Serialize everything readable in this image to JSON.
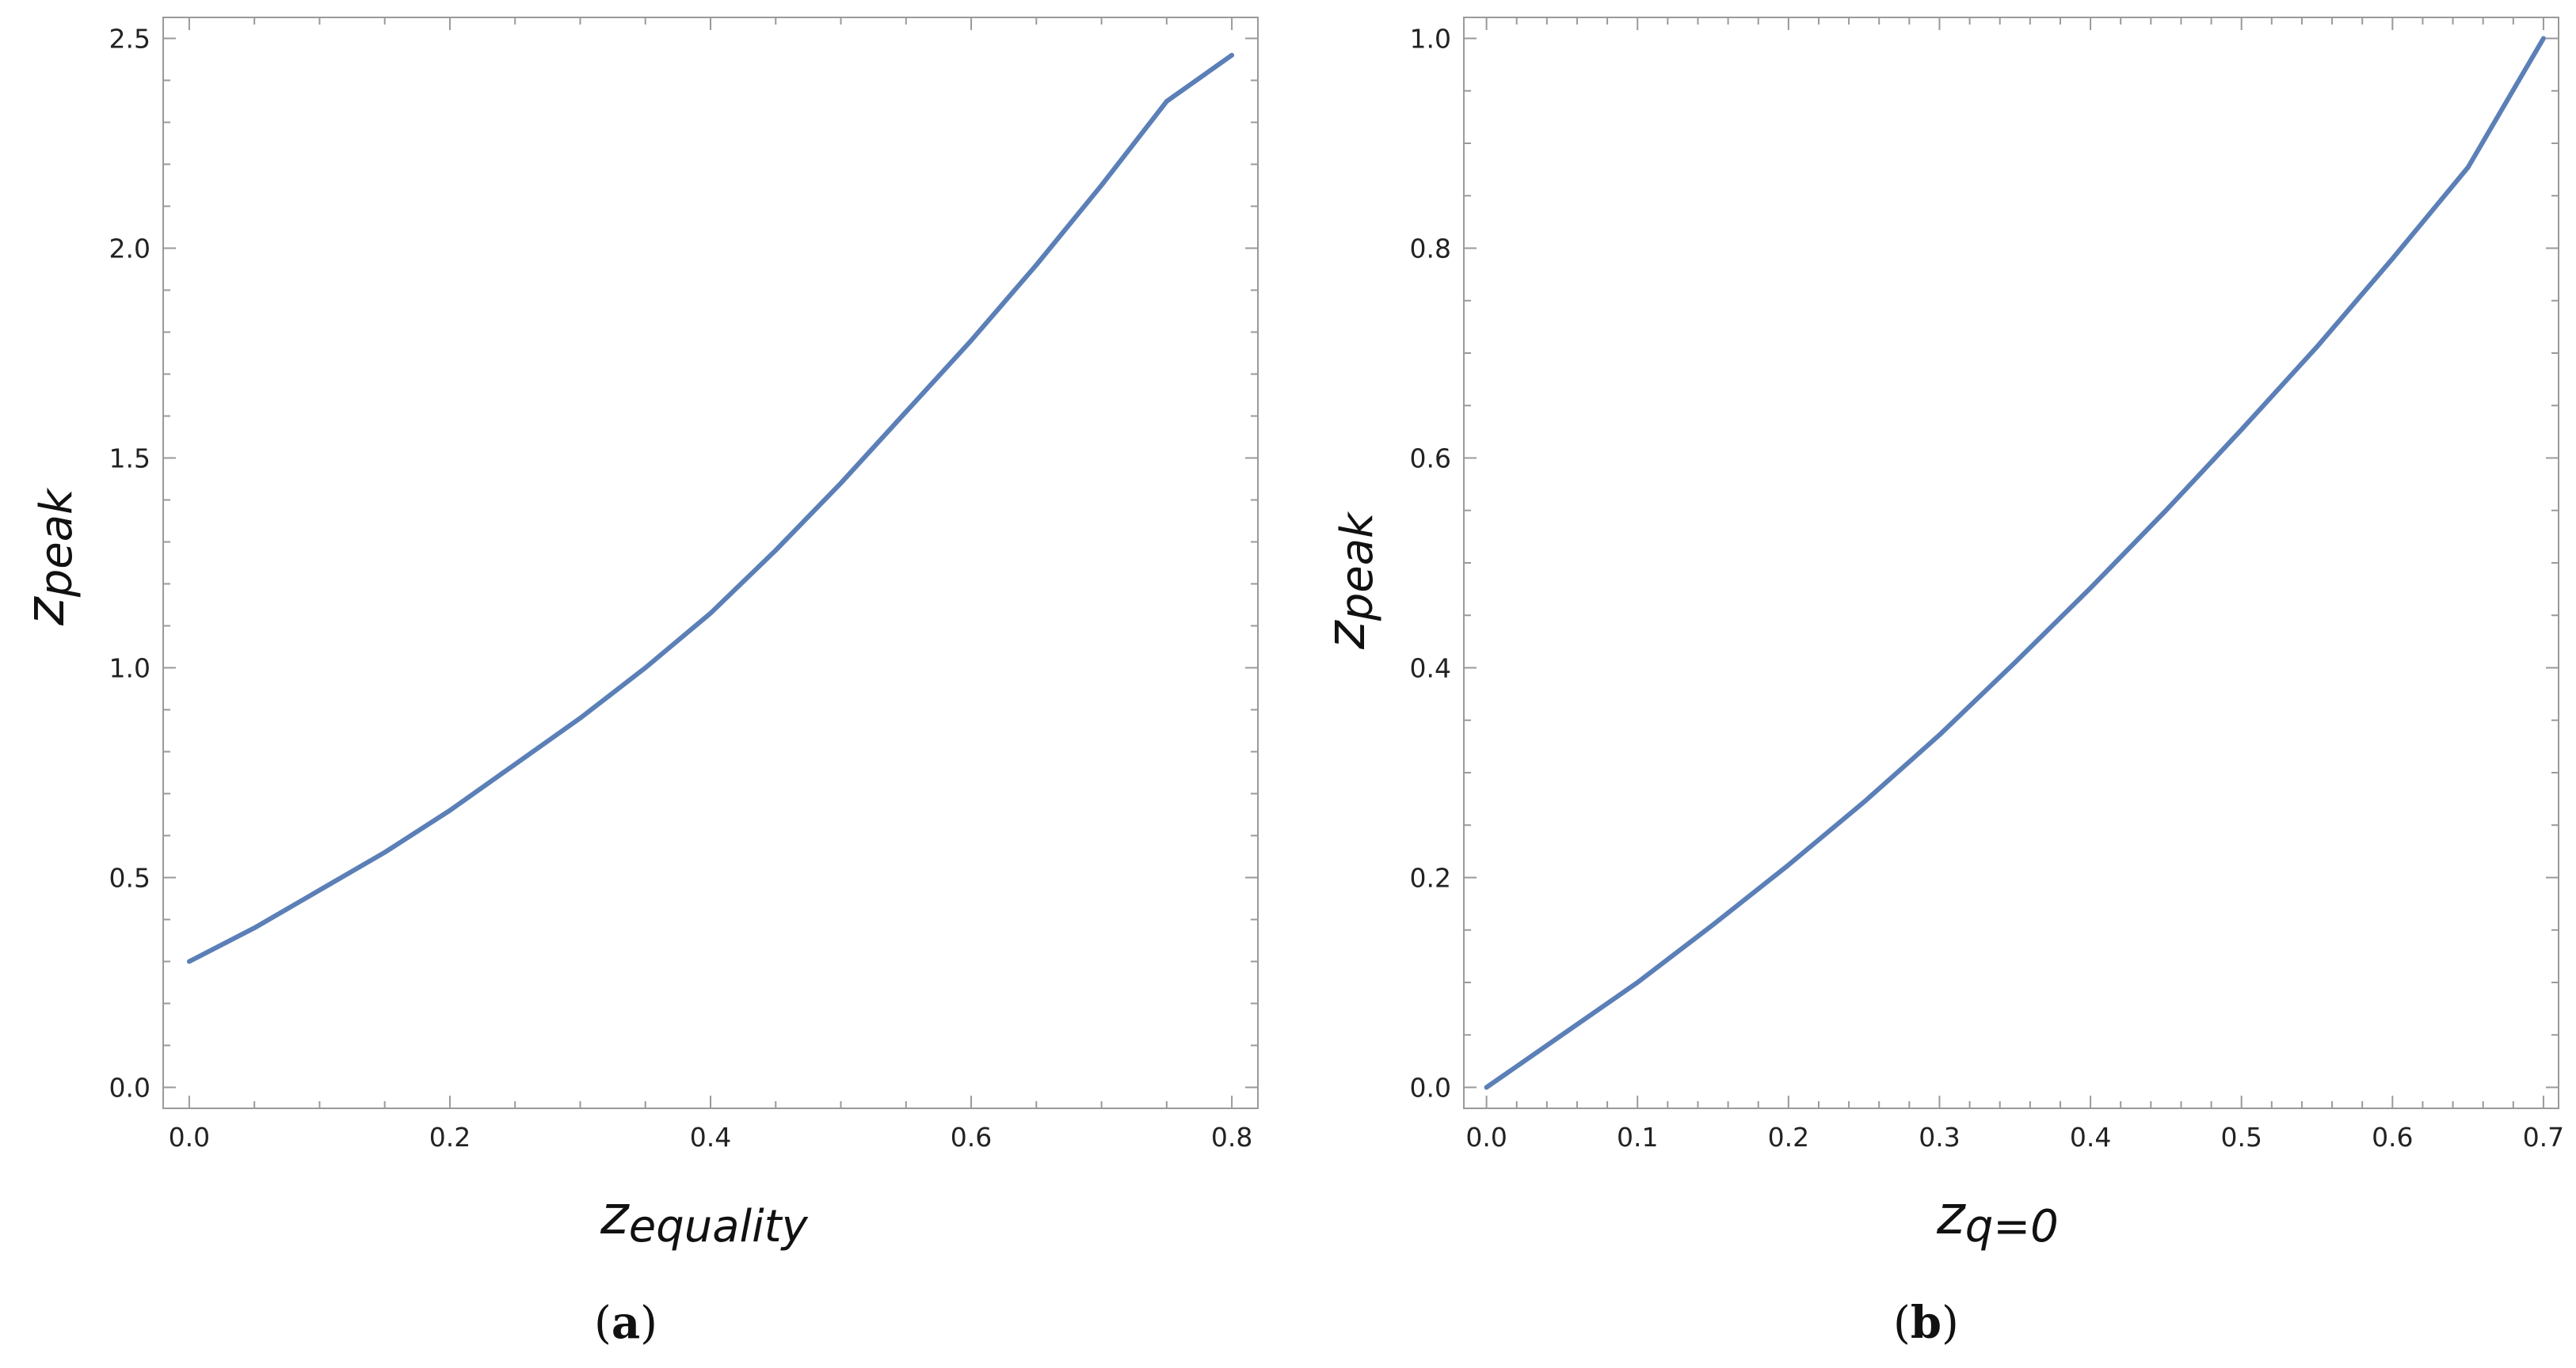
{
  "line_color": "#5b7fb7",
  "panels": [
    {
      "caption_open": "(",
      "caption_letter": "a",
      "caption_close": ")",
      "xlabel_main": "z",
      "xlabel_sub": "equality",
      "ylabel_main": "z",
      "ylabel_sub": "peak"
    },
    {
      "caption_open": "(",
      "caption_letter": "b",
      "caption_close": ")",
      "xlabel_main": "z",
      "xlabel_sub": "q=0",
      "ylabel_main": "z",
      "ylabel_sub": "peak"
    }
  ],
  "chart_data": [
    {
      "type": "line",
      "xlim": [
        -0.02,
        0.82
      ],
      "ylim": [
        -0.05,
        2.55
      ],
      "xticks": [
        "0.0",
        "0.2",
        "0.4",
        "0.6",
        "0.8"
      ],
      "xtick_values": [
        0.0,
        0.2,
        0.4,
        0.6,
        0.8
      ],
      "xminor_step": 0.05,
      "yticks": [
        "0.0",
        "0.5",
        "1.0",
        "1.5",
        "2.0",
        "2.5"
      ],
      "ytick_values": [
        0.0,
        0.5,
        1.0,
        1.5,
        2.0,
        2.5
      ],
      "yminor_step": 0.1,
      "grid": false,
      "series": [
        {
          "x": [
            0.0,
            0.05,
            0.1,
            0.15,
            0.2,
            0.25,
            0.3,
            0.35,
            0.4,
            0.45,
            0.5,
            0.55,
            0.6,
            0.65,
            0.7,
            0.75,
            0.8
          ],
          "y": [
            0.3,
            0.38,
            0.47,
            0.56,
            0.66,
            0.77,
            0.88,
            1.0,
            1.13,
            1.28,
            1.44,
            1.61,
            1.78,
            1.96,
            2.15,
            2.35,
            2.46
          ]
        }
      ]
    },
    {
      "type": "line",
      "xlim": [
        -0.015,
        0.71
      ],
      "ylim": [
        -0.02,
        1.02
      ],
      "xticks": [
        "0.0",
        "0.1",
        "0.2",
        "0.3",
        "0.4",
        "0.5",
        "0.6",
        "0.7"
      ],
      "xtick_values": [
        0.0,
        0.1,
        0.2,
        0.3,
        0.4,
        0.5,
        0.6,
        0.7
      ],
      "xminor_step": 0.02,
      "yticks": [
        "0.0",
        "0.2",
        "0.4",
        "0.6",
        "0.8",
        "1.0"
      ],
      "ytick_values": [
        0.0,
        0.2,
        0.4,
        0.6,
        0.8,
        1.0
      ],
      "yminor_step": 0.05,
      "grid": false,
      "series": [
        {
          "x": [
            0.0,
            0.05,
            0.1,
            0.15,
            0.2,
            0.25,
            0.3,
            0.35,
            0.4,
            0.45,
            0.5,
            0.55,
            0.6,
            0.65,
            0.7
          ],
          "y": [
            0.0,
            0.05,
            0.1,
            0.155,
            0.212,
            0.272,
            0.336,
            0.405,
            0.476,
            0.55,
            0.627,
            0.706,
            0.79,
            0.877,
            1.0
          ]
        }
      ]
    }
  ]
}
